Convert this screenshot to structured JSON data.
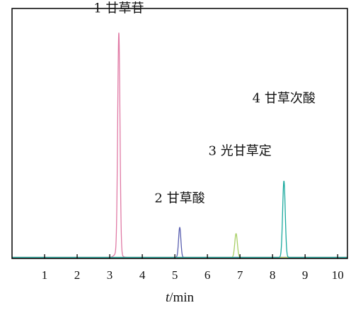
{
  "chart_data": {
    "type": "line",
    "title": "",
    "xlabel": {
      "italic": "t",
      "rest": "/min"
    },
    "ylabel": "",
    "xlim": [
      0,
      10.3
    ],
    "ylim": [
      0,
      1
    ],
    "x_ticks": [
      1,
      2,
      3,
      4,
      5,
      6,
      7,
      8,
      9,
      10
    ],
    "grid": false,
    "legend": "none",
    "series": [
      {
        "color": "#e07aa5",
        "peaks": [
          {
            "t": 3.28,
            "h": 0.88,
            "w": 0.035
          },
          {
            "t": 3.25,
            "h": 0.02,
            "w": 0.09
          }
        ]
      },
      {
        "color": "#5a5fb0",
        "peaks": [
          {
            "t": 5.15,
            "h": 0.12,
            "w": 0.035
          }
        ]
      },
      {
        "color": "#a8cf66",
        "peaks": [
          {
            "t": 6.88,
            "h": 0.095,
            "w": 0.04
          }
        ]
      },
      {
        "color": "#1aa99e",
        "peaks": [
          {
            "t": 8.35,
            "h": 0.305,
            "w": 0.04
          }
        ]
      }
    ],
    "annotations": [
      {
        "text": "1 甘草苷",
        "t": 3.28,
        "y": 0.98
      },
      {
        "text": "2 甘草酸",
        "t": 5.15,
        "y": 0.22
      },
      {
        "text": "3 光甘草定",
        "t": 7.0,
        "y": 0.41
      },
      {
        "text": "4 甘草次酸",
        "t": 8.35,
        "y": 0.62
      }
    ]
  }
}
